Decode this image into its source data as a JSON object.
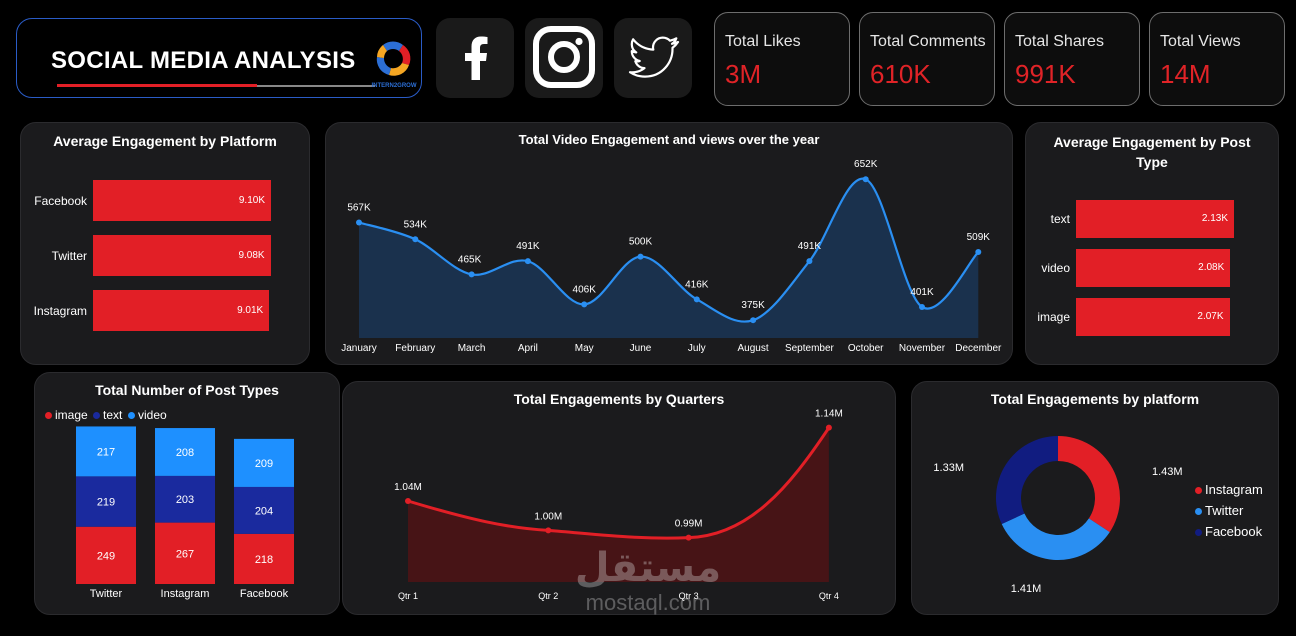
{
  "header": {
    "title": "SOCIAL MEDIA ANALYSIS",
    "brand": "INTERN2GROW"
  },
  "social_icons": [
    "facebook-icon",
    "instagram-icon",
    "twitter-icon"
  ],
  "kpis": [
    {
      "label": "Total Likes",
      "value": "3M"
    },
    {
      "label": "Total Comments",
      "value": "610K"
    },
    {
      "label": "Total Shares",
      "value": "991K"
    },
    {
      "label": "Total Views",
      "value": "14M"
    }
  ],
  "colors": {
    "red": "#e21f26",
    "blue": "#2a8ff2",
    "lightblue": "#1e90ff",
    "navy": "#1a2a9e",
    "panel": "#1b1b1d"
  },
  "watermark": {
    "arabic": "مستقل",
    "latin": "mostaql.com"
  },
  "chart_data": [
    {
      "id": "avg-engagement-platform",
      "type": "bar",
      "orientation": "horizontal",
      "title": "Average Engagement by Platform",
      "categories": [
        "Facebook",
        "Twitter",
        "Instagram"
      ],
      "values": [
        9.1,
        9.08,
        9.01
      ],
      "value_labels": [
        "9.10K",
        "9.08K",
        "9.01K"
      ],
      "unit": "K"
    },
    {
      "id": "video-engagement-year",
      "type": "area",
      "title": "Total Video Engagement and views over the year",
      "categories": [
        "January",
        "February",
        "March",
        "April",
        "May",
        "June",
        "July",
        "August",
        "September",
        "October",
        "November",
        "December"
      ],
      "values": [
        567,
        534,
        465,
        491,
        406,
        500,
        416,
        375,
        491,
        652,
        401,
        509
      ],
      "value_labels": [
        "567K",
        "534K",
        "465K",
        "491K",
        "406K",
        "500K",
        "416K",
        "375K",
        "491K",
        "652K",
        "401K",
        "509K"
      ],
      "unit": "K"
    },
    {
      "id": "avg-engagement-post-type",
      "type": "bar",
      "orientation": "horizontal",
      "title": "Average Engagement by Post Type",
      "categories": [
        "text",
        "video",
        "image"
      ],
      "values": [
        2.13,
        2.08,
        2.07
      ],
      "value_labels": [
        "2.13K",
        "2.08K",
        "2.07K"
      ],
      "unit": "K"
    },
    {
      "id": "post-types-stacked",
      "type": "bar",
      "stacked": true,
      "title": "Total Number of Post Types",
      "categories": [
        "Twitter",
        "Instagram",
        "Facebook"
      ],
      "legend": [
        "image",
        "text",
        "video"
      ],
      "series": [
        {
          "name": "image",
          "values": [
            249,
            267,
            218
          ],
          "color": "#e21f26"
        },
        {
          "name": "text",
          "values": [
            219,
            203,
            204
          ],
          "color": "#1a2a9e"
        },
        {
          "name": "video",
          "values": [
            217,
            208,
            209
          ],
          "color": "#1e90ff"
        }
      ]
    },
    {
      "id": "engagements-quarters",
      "type": "area",
      "title": "Total Engagements by Quarters",
      "categories": [
        "Qtr 1",
        "Qtr 2",
        "Qtr 3",
        "Qtr 4"
      ],
      "values": [
        1.04,
        1.0,
        0.99,
        1.14
      ],
      "value_labels": [
        "1.04M",
        "1.00M",
        "0.99M",
        "1.14M"
      ],
      "unit": "M"
    },
    {
      "id": "engagements-platform-donut",
      "type": "pie",
      "donut": true,
      "title": "Total Engagements by platform",
      "categories": [
        "Instagram",
        "Twitter",
        "Facebook"
      ],
      "values": [
        1.43,
        1.41,
        1.33
      ],
      "value_labels": [
        "1.43M",
        "1.41M",
        "1.33M"
      ],
      "unit": "M",
      "colors": [
        "#e21f26",
        "#2a8ff2",
        "#111c80"
      ]
    }
  ]
}
